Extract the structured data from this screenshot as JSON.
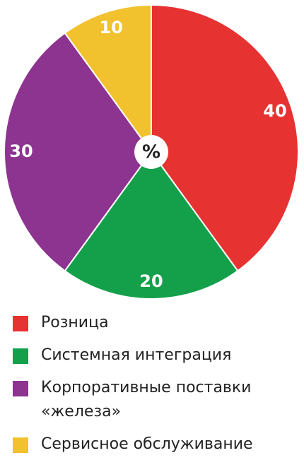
{
  "chart_data": {
    "type": "pie",
    "center_label": "%",
    "categories": [
      "Розница",
      "Системная интеграция",
      "Корпоративные поставки «железа»",
      "Сервисное обслуживание"
    ],
    "values": [
      40,
      20,
      30,
      10
    ],
    "colors": [
      "#e63331",
      "#14a04a",
      "#8c3490",
      "#f2c12e"
    ]
  }
}
